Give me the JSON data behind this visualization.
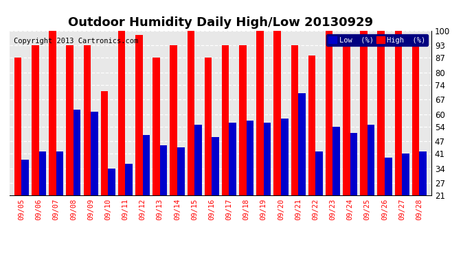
{
  "title": "Outdoor Humidity Daily High/Low 20130929",
  "copyright": "Copyright 2013 Cartronics.com",
  "legend_low": "Low  (%)",
  "legend_high": "High  (%)",
  "dates": [
    "09/05",
    "09/06",
    "09/07",
    "09/08",
    "09/09",
    "09/10",
    "09/11",
    "09/12",
    "09/13",
    "09/14",
    "09/15",
    "09/16",
    "09/17",
    "09/18",
    "09/19",
    "09/20",
    "09/21",
    "09/22",
    "09/23",
    "09/24",
    "09/25",
    "09/26",
    "09/27",
    "09/28"
  ],
  "high": [
    87,
    93,
    100,
    93,
    93,
    71,
    100,
    98,
    87,
    93,
    100,
    87,
    93,
    93,
    100,
    100,
    93,
    88,
    100,
    96,
    100,
    100,
    100,
    95
  ],
  "low": [
    38,
    42,
    42,
    62,
    61,
    34,
    36,
    50,
    45,
    44,
    55,
    49,
    56,
    57,
    56,
    58,
    70,
    42,
    54,
    51,
    55,
    39,
    41,
    42
  ],
  "ymin": 21,
  "ymax": 100,
  "yticks": [
    21,
    27,
    34,
    41,
    47,
    54,
    60,
    67,
    74,
    80,
    87,
    93,
    100
  ],
  "bar_color_high": "#ff0000",
  "bar_color_low": "#0000cc",
  "bg_color": "#ffffff",
  "plot_bg_color": "#e8e8e8",
  "grid_color": "#ffffff",
  "title_fontsize": 13,
  "copyright_fontsize": 7.5
}
